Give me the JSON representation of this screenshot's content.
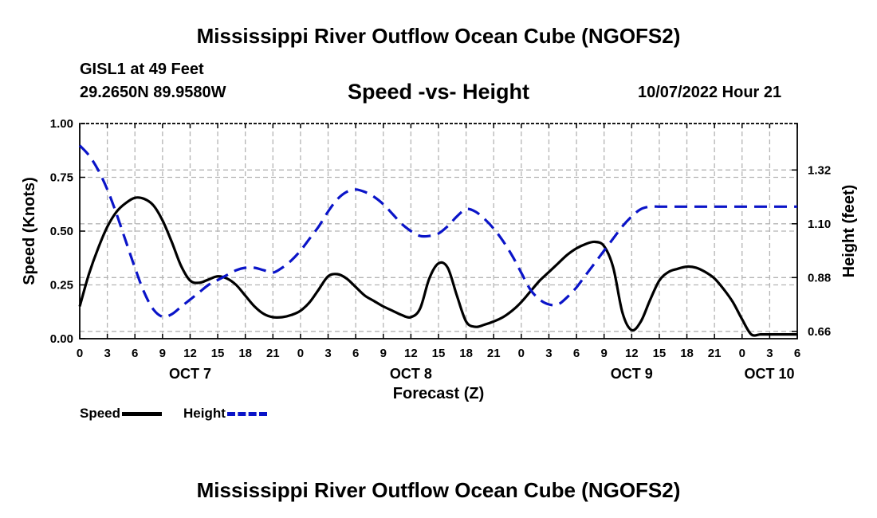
{
  "header": {
    "title": "Mississippi River Outflow Ocean Cube (NGOFS2)",
    "station": "GISL1 at 49 Feet",
    "coords": "29.2650N  89.9580W",
    "subtitle": "Speed -vs- Height",
    "datetime": "10/07/2022 Hour 21"
  },
  "footer": {
    "title": "Mississippi River Outflow Ocean Cube (NGOFS2)"
  },
  "legend": {
    "speed": "Speed",
    "height": "Height"
  },
  "colors": {
    "speed": "#000000",
    "height": "#0a14c8",
    "grid": "#b4b4b4"
  },
  "chart_data": {
    "type": "line",
    "xlabel": "Forecast (Z)",
    "ylabel_left": "Speed (Knots)",
    "ylabel_right": "Height (feet)",
    "xlim": [
      0,
      78
    ],
    "x_unit": "hours since 2022-10-07 00Z",
    "x_tick_labels": [
      "0",
      "3",
      "6",
      "9",
      "12",
      "15",
      "18",
      "21",
      "0",
      "3",
      "6",
      "9",
      "12",
      "15",
      "18",
      "21",
      "0",
      "3",
      "6",
      "9",
      "12",
      "15",
      "18",
      "21",
      "0",
      "3",
      "6"
    ],
    "date_labels": [
      {
        "label": "OCT 7",
        "hour": 12
      },
      {
        "label": "OCT 8",
        "hour": 36
      },
      {
        "label": "OCT 9",
        "hour": 60
      },
      {
        "label": "OCT 10",
        "hour": 78
      }
    ],
    "ylim_left": [
      0,
      1.0
    ],
    "yticks_left": [
      "0.00",
      "0.25",
      "0.50",
      "0.75",
      "1.00"
    ],
    "ylim_right": [
      0.63,
      1.51
    ],
    "yticks_right": [
      0.66,
      0.88,
      1.1,
      1.32
    ],
    "yticks_right_labels": [
      "0.66",
      "0.88",
      "1.10",
      "1.32"
    ],
    "grid": true,
    "series": [
      {
        "name": "Speed",
        "axis": "left",
        "style": "solid",
        "x": [
          0,
          1,
          2,
          3,
          4,
          5,
          6,
          7,
          8,
          9,
          10,
          11,
          12,
          13,
          14,
          15,
          16,
          17,
          18,
          19,
          20,
          21,
          22,
          23,
          24,
          25,
          26,
          27,
          28,
          29,
          30,
          31,
          32,
          33,
          34,
          35,
          36,
          37,
          38,
          39,
          40,
          41,
          42,
          43,
          44,
          45,
          46,
          47,
          48,
          49,
          50,
          51,
          52,
          53,
          54,
          55,
          56,
          57,
          58,
          59,
          60,
          61,
          62,
          63,
          64,
          65,
          66,
          67,
          68,
          69,
          70,
          71,
          72,
          73,
          74,
          75,
          76,
          77,
          78
        ],
        "values": [
          0.15,
          0.3,
          0.42,
          0.52,
          0.59,
          0.63,
          0.655,
          0.65,
          0.62,
          0.55,
          0.45,
          0.34,
          0.27,
          0.26,
          0.275,
          0.29,
          0.28,
          0.25,
          0.2,
          0.15,
          0.115,
          0.1,
          0.1,
          0.11,
          0.13,
          0.17,
          0.23,
          0.29,
          0.3,
          0.28,
          0.24,
          0.2,
          0.175,
          0.15,
          0.13,
          0.11,
          0.1,
          0.14,
          0.28,
          0.35,
          0.33,
          0.2,
          0.08,
          0.055,
          0.065,
          0.08,
          0.1,
          0.13,
          0.17,
          0.22,
          0.27,
          0.31,
          0.35,
          0.39,
          0.42,
          0.44,
          0.45,
          0.43,
          0.33,
          0.12,
          0.04,
          0.08,
          0.18,
          0.27,
          0.31,
          0.325,
          0.335,
          0.33,
          0.31,
          0.28,
          0.23,
          0.17,
          0.09,
          0.02,
          0.02,
          0.02,
          0.02,
          0.02,
          0.02
        ]
      },
      {
        "name": "Height",
        "axis": "right",
        "style": "dashed",
        "x": [
          0,
          1,
          2,
          3,
          4,
          5,
          6,
          7,
          8,
          9,
          10,
          11,
          12,
          13,
          14,
          15,
          16,
          17,
          18,
          19,
          20,
          21,
          22,
          23,
          24,
          25,
          26,
          27,
          28,
          29,
          30,
          31,
          32,
          33,
          34,
          35,
          36,
          37,
          38,
          39,
          40,
          41,
          42,
          43,
          44,
          45,
          46,
          47,
          48,
          49,
          50,
          51,
          52,
          53,
          54,
          55,
          56,
          57,
          58,
          59,
          60,
          61,
          62,
          63,
          64,
          65,
          66,
          67,
          68,
          69,
          70,
          71,
          72,
          73,
          74,
          75,
          76,
          77,
          78
        ],
        "values": [
          1.42,
          1.38,
          1.32,
          1.24,
          1.14,
          1.03,
          0.92,
          0.82,
          0.75,
          0.72,
          0.73,
          0.76,
          0.79,
          0.82,
          0.85,
          0.87,
          0.89,
          0.91,
          0.92,
          0.92,
          0.91,
          0.9,
          0.92,
          0.95,
          0.99,
          1.04,
          1.09,
          1.15,
          1.2,
          1.23,
          1.24,
          1.23,
          1.21,
          1.18,
          1.14,
          1.1,
          1.07,
          1.05,
          1.05,
          1.06,
          1.09,
          1.13,
          1.16,
          1.15,
          1.12,
          1.08,
          1.03,
          0.97,
          0.9,
          0.83,
          0.79,
          0.77,
          0.77,
          0.8,
          0.84,
          0.89,
          0.94,
          0.99,
          1.04,
          1.09,
          1.13,
          1.16,
          1.17,
          1.17,
          1.17,
          1.17,
          1.17,
          1.17,
          1.17,
          1.17,
          1.17,
          1.17,
          1.17,
          1.17,
          1.17,
          1.17,
          1.17,
          1.17,
          1.17
        ]
      }
    ]
  }
}
